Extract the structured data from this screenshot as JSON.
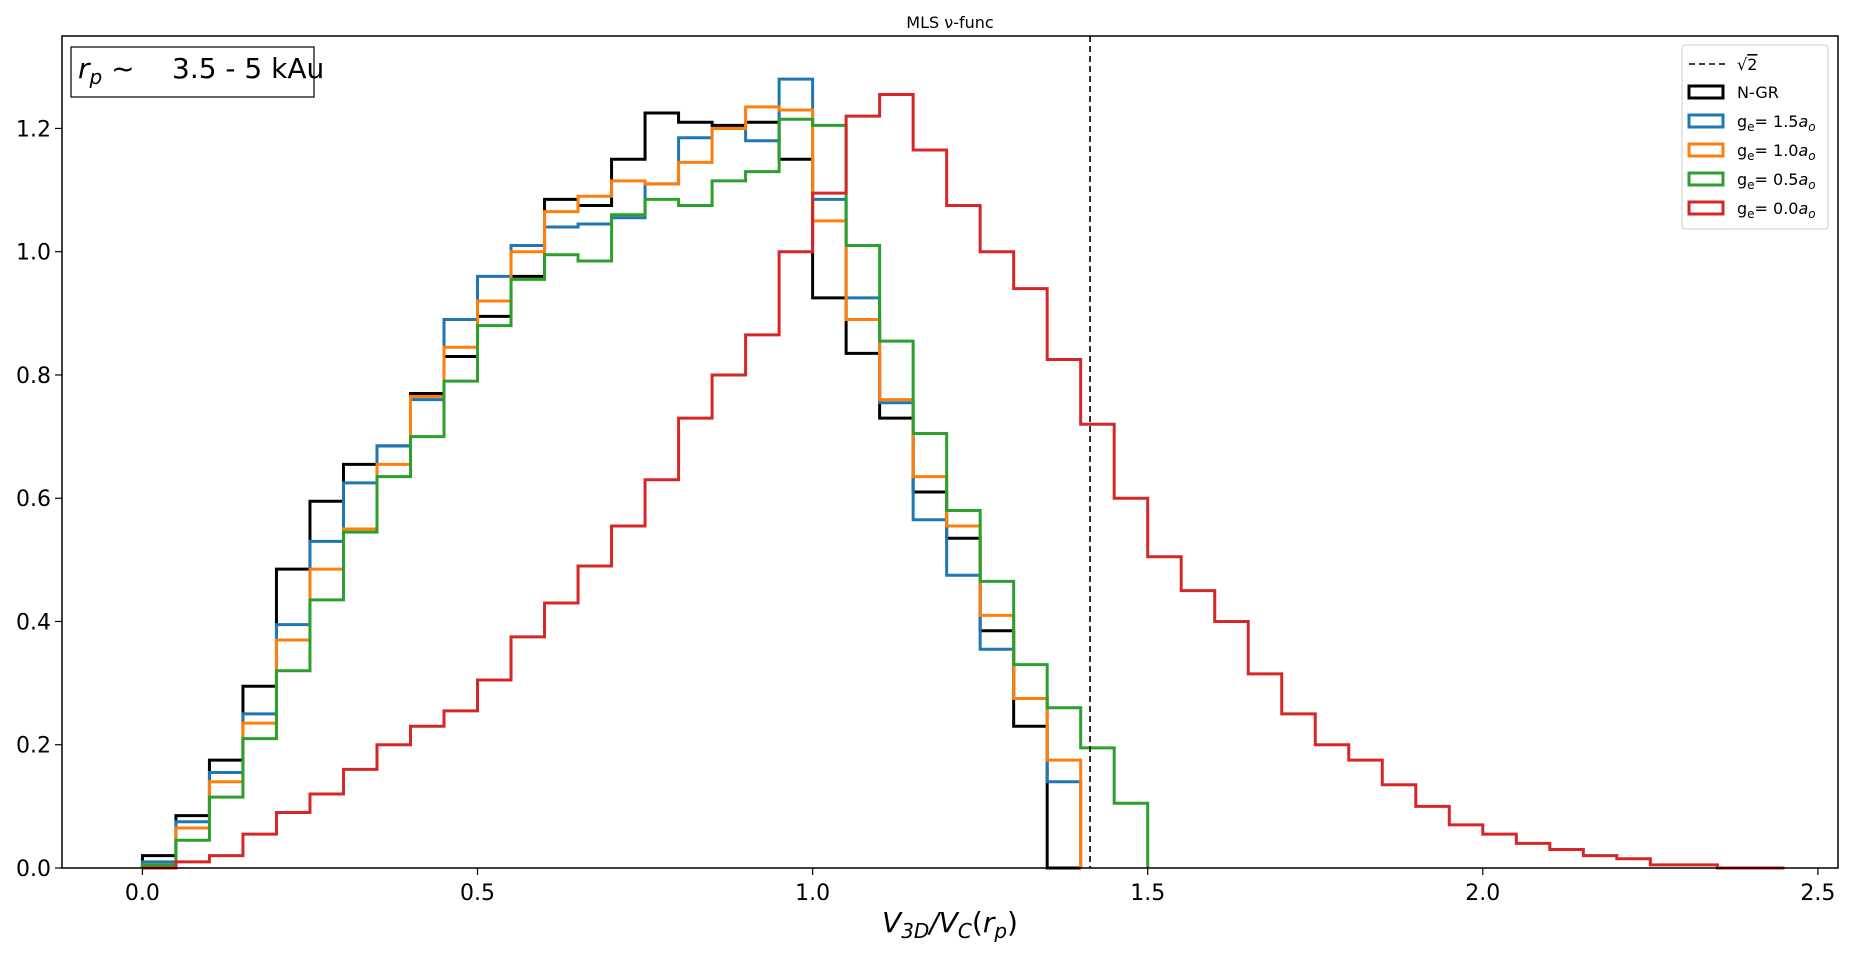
{
  "chart_data": {
    "type": "histogram-step",
    "title": "MLS ν-func",
    "xlabel": "V_3D/V_C(r_p)",
    "ylabel": "",
    "xlim": [
      -0.12,
      2.53
    ],
    "ylim": [
      0.0,
      1.35
    ],
    "xticks": [
      0.0,
      0.5,
      1.0,
      1.5,
      2.0,
      2.5
    ],
    "xtick_labels": [
      "0.0",
      "0.5",
      "1.0",
      "1.5",
      "2.0",
      "2.5"
    ],
    "yticks": [
      0.0,
      0.2,
      0.4,
      0.6,
      0.8,
      1.0,
      1.2
    ],
    "ytick_labels": [
      "0.0",
      "0.2",
      "0.4",
      "0.6",
      "0.8",
      "1.0",
      "1.2"
    ],
    "grid": false,
    "legend_position": "top-right",
    "annotation": {
      "prefix": "r_p ~",
      "text": "3.5 - 5 kAu",
      "position": "top-left"
    },
    "vline": {
      "x": 1.414,
      "label": "√2",
      "style": "dashed",
      "color": "#000000"
    },
    "series": [
      {
        "name": "N-GR",
        "color": "#000000",
        "x_start": 0.0,
        "bin_width": 0.05,
        "values": [
          0.02,
          0.085,
          0.175,
          0.295,
          0.485,
          0.595,
          0.655,
          0.685,
          0.77,
          0.83,
          0.895,
          0.96,
          1.085,
          1.075,
          1.15,
          1.225,
          1.21,
          1.205,
          1.21,
          1.15,
          0.925,
          0.835,
          0.73,
          0.61,
          0.535,
          0.385,
          0.23,
          0.0
        ]
      },
      {
        "name": "g_e= 1.5a_o",
        "color": "#1f77b4",
        "x_start": 0.0,
        "bin_width": 0.05,
        "values": [
          0.01,
          0.075,
          0.155,
          0.25,
          0.395,
          0.53,
          0.625,
          0.685,
          0.76,
          0.89,
          0.96,
          1.01,
          1.04,
          1.045,
          1.055,
          1.11,
          1.185,
          1.2,
          1.18,
          1.28,
          1.085,
          0.925,
          0.755,
          0.565,
          0.475,
          0.355,
          0.275,
          0.14
        ]
      },
      {
        "name": "g_e= 1.0a_o",
        "color": "#ff7f0e",
        "x_start": 0.0,
        "bin_width": 0.05,
        "values": [
          0.005,
          0.065,
          0.14,
          0.235,
          0.37,
          0.485,
          0.55,
          0.655,
          0.765,
          0.845,
          0.92,
          1.0,
          1.065,
          1.09,
          1.115,
          1.11,
          1.145,
          1.2,
          1.235,
          1.23,
          1.05,
          0.89,
          0.76,
          0.635,
          0.555,
          0.41,
          0.275,
          0.175
        ]
      },
      {
        "name": "g_e= 0.5a_o",
        "color": "#2ca02c",
        "x_start": 0.0,
        "bin_width": 0.05,
        "values": [
          0.005,
          0.045,
          0.115,
          0.21,
          0.32,
          0.435,
          0.545,
          0.635,
          0.7,
          0.79,
          0.88,
          0.955,
          0.995,
          0.985,
          1.06,
          1.085,
          1.075,
          1.115,
          1.13,
          1.215,
          1.205,
          1.01,
          0.855,
          0.705,
          0.58,
          0.465,
          0.33,
          0.26,
          0.195,
          0.105
        ]
      },
      {
        "name": "g_e= 0.0a_o",
        "color": "#d62728",
        "x_start": 0.0,
        "bin_width": 0.05,
        "values": [
          0.0,
          0.01,
          0.02,
          0.055,
          0.09,
          0.12,
          0.16,
          0.2,
          0.23,
          0.255,
          0.305,
          0.375,
          0.43,
          0.49,
          0.555,
          0.63,
          0.73,
          0.8,
          0.865,
          1.0,
          1.095,
          1.22,
          1.255,
          1.165,
          1.075,
          1.0,
          0.94,
          0.825,
          0.72,
          0.6,
          0.505,
          0.45,
          0.4,
          0.315,
          0.25,
          0.2,
          0.175,
          0.135,
          0.1,
          0.07,
          0.055,
          0.04,
          0.03,
          0.02,
          0.015,
          0.005,
          0.005,
          0.0,
          0.0
        ]
      }
    ]
  }
}
